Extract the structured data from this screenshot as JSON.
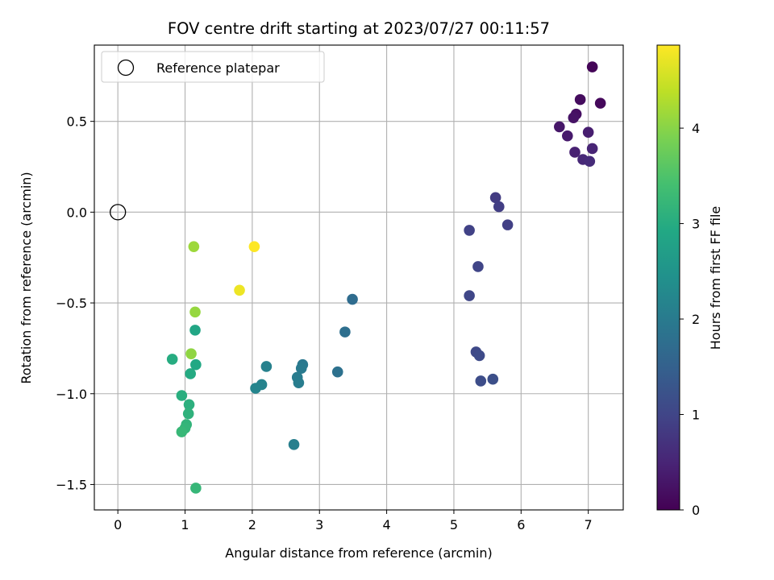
{
  "chart_data": {
    "type": "scatter",
    "title": "FOV centre drift starting at 2023/07/27 00:11:57",
    "xlabel": "Angular distance from reference (arcmin)",
    "ylabel": "Rotation from reference (arcmin)",
    "xlim": [
      -0.35,
      7.52
    ],
    "ylim": [
      -1.64,
      0.92
    ],
    "x_ticks": [
      0,
      1,
      2,
      3,
      4,
      5,
      6,
      7
    ],
    "x_tick_labels": [
      "0",
      "1",
      "2",
      "3",
      "4",
      "5",
      "6",
      "7"
    ],
    "y_ticks": [
      -1.5,
      -1.0,
      -0.5,
      0.0,
      0.5
    ],
    "y_tick_labels": [
      "−1.5",
      "−1.0",
      "−0.5",
      "0.0",
      "0.5"
    ],
    "grid": true,
    "colormap": "viridis",
    "colorbar": {
      "label": "Hours from first FF file",
      "range": [
        0,
        4.87
      ],
      "ticks": [
        0,
        1,
        2,
        3,
        4
      ],
      "tick_labels": [
        "0",
        "1",
        "2",
        "3",
        "4"
      ]
    },
    "legend": {
      "placement": "top-left",
      "entries": [
        "Reference platepar"
      ]
    },
    "reference_point": {
      "x": 0.0,
      "y": 0.0,
      "marker": "open-circle",
      "color": "#000000"
    },
    "points": [
      {
        "x": 7.06,
        "y": 0.8,
        "hours": 0.05
      },
      {
        "x": 7.18,
        "y": 0.6,
        "hours": 0.1
      },
      {
        "x": 6.88,
        "y": 0.62,
        "hours": 0.15
      },
      {
        "x": 6.82,
        "y": 0.54,
        "hours": 0.2
      },
      {
        "x": 6.78,
        "y": 0.52,
        "hours": 0.25
      },
      {
        "x": 6.57,
        "y": 0.47,
        "hours": 0.3
      },
      {
        "x": 6.69,
        "y": 0.42,
        "hours": 0.35
      },
      {
        "x": 7.0,
        "y": 0.44,
        "hours": 0.4
      },
      {
        "x": 6.8,
        "y": 0.33,
        "hours": 0.45
      },
      {
        "x": 7.06,
        "y": 0.35,
        "hours": 0.5
      },
      {
        "x": 6.92,
        "y": 0.29,
        "hours": 0.55
      },
      {
        "x": 7.02,
        "y": 0.28,
        "hours": 0.6
      },
      {
        "x": 5.62,
        "y": 0.08,
        "hours": 0.85
      },
      {
        "x": 5.67,
        "y": 0.03,
        "hours": 0.88
      },
      {
        "x": 5.8,
        "y": -0.07,
        "hours": 0.92
      },
      {
        "x": 5.23,
        "y": -0.1,
        "hours": 0.95
      },
      {
        "x": 5.36,
        "y": -0.3,
        "hours": 1.0
      },
      {
        "x": 5.23,
        "y": -0.46,
        "hours": 1.03
      },
      {
        "x": 5.33,
        "y": -0.77,
        "hours": 1.07
      },
      {
        "x": 5.38,
        "y": -0.79,
        "hours": 1.1
      },
      {
        "x": 5.4,
        "y": -0.93,
        "hours": 1.13
      },
      {
        "x": 5.58,
        "y": -0.92,
        "hours": 1.17
      },
      {
        "x": 3.49,
        "y": -0.48,
        "hours": 1.72
      },
      {
        "x": 3.38,
        "y": -0.66,
        "hours": 1.77
      },
      {
        "x": 3.27,
        "y": -0.88,
        "hours": 1.82
      },
      {
        "x": 2.75,
        "y": -0.84,
        "hours": 1.95
      },
      {
        "x": 2.73,
        "y": -0.86,
        "hours": 1.98
      },
      {
        "x": 2.67,
        "y": -0.91,
        "hours": 2.02
      },
      {
        "x": 2.69,
        "y": -0.94,
        "hours": 2.05
      },
      {
        "x": 2.62,
        "y": -1.28,
        "hours": 2.08
      },
      {
        "x": 2.21,
        "y": -0.85,
        "hours": 2.12
      },
      {
        "x": 2.14,
        "y": -0.95,
        "hours": 2.16
      },
      {
        "x": 2.05,
        "y": -0.97,
        "hours": 2.2
      },
      {
        "x": 1.15,
        "y": -0.65,
        "hours": 2.88
      },
      {
        "x": 1.16,
        "y": -0.84,
        "hours": 2.92
      },
      {
        "x": 1.08,
        "y": -0.89,
        "hours": 2.96
      },
      {
        "x": 0.81,
        "y": -0.81,
        "hours": 3.0
      },
      {
        "x": 0.95,
        "y": -1.01,
        "hours": 3.04
      },
      {
        "x": 1.06,
        "y": -1.06,
        "hours": 3.08
      },
      {
        "x": 1.05,
        "y": -1.11,
        "hours": 3.12
      },
      {
        "x": 1.02,
        "y": -1.17,
        "hours": 3.16
      },
      {
        "x": 1.0,
        "y": -1.19,
        "hours": 3.2
      },
      {
        "x": 0.95,
        "y": -1.21,
        "hours": 3.24
      },
      {
        "x": 1.16,
        "y": -1.52,
        "hours": 3.22
      },
      {
        "x": 1.09,
        "y": -0.78,
        "hours": 4.05
      },
      {
        "x": 1.15,
        "y": -0.55,
        "hours": 4.1
      },
      {
        "x": 1.13,
        "y": -0.19,
        "hours": 4.15
      },
      {
        "x": 1.81,
        "y": -0.43,
        "hours": 4.75
      },
      {
        "x": 2.03,
        "y": -0.19,
        "hours": 4.87
      }
    ]
  }
}
